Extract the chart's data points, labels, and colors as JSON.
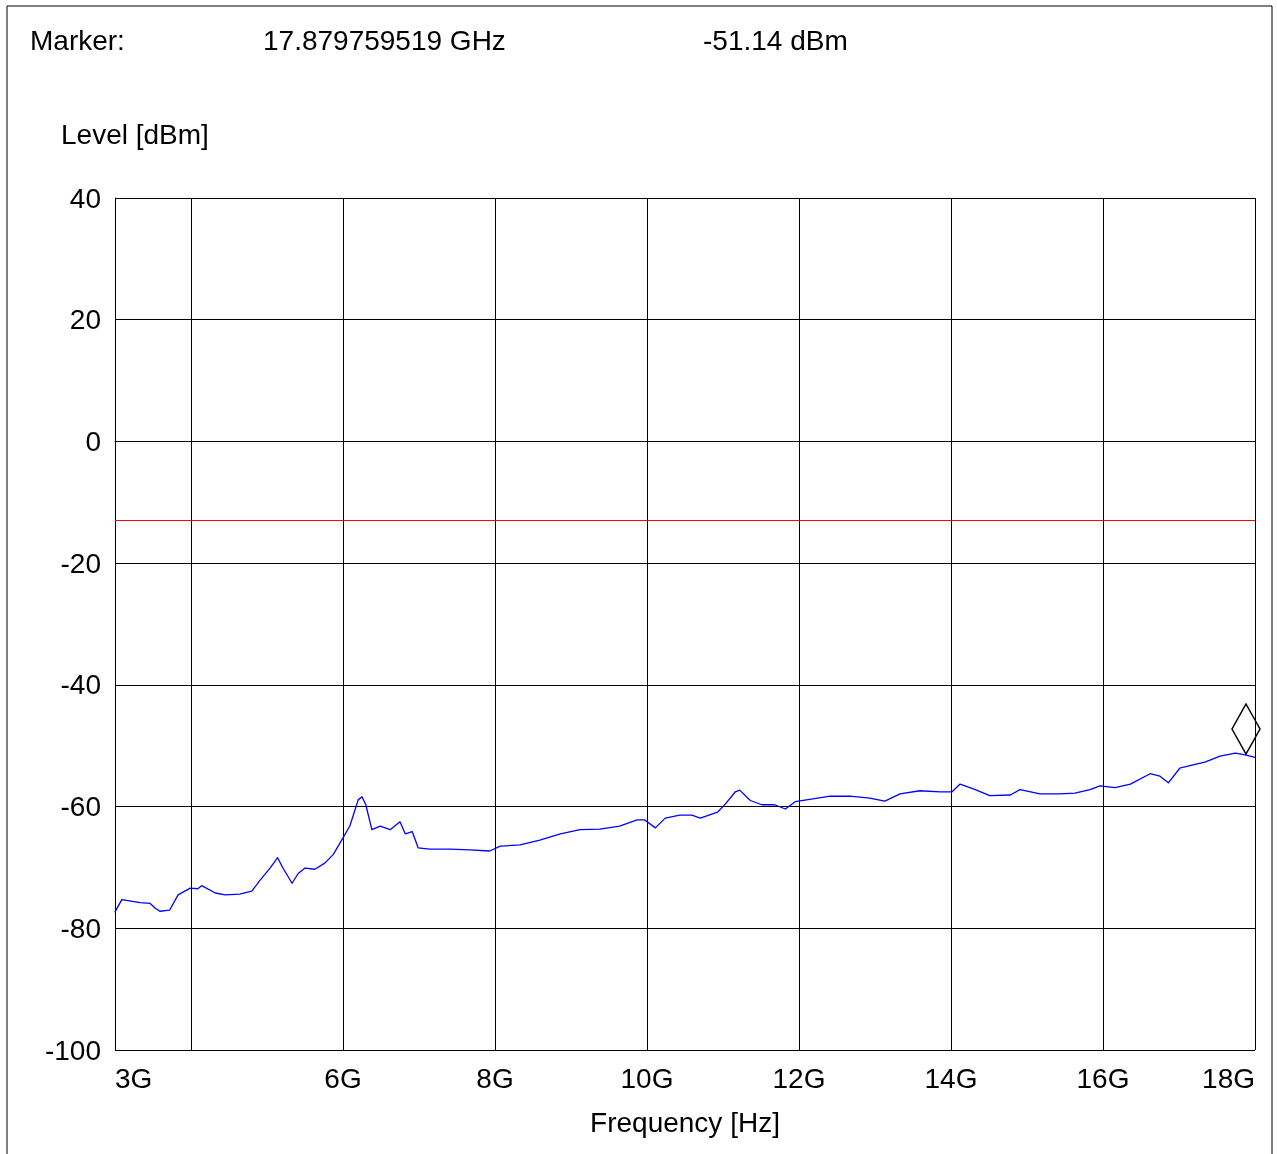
{
  "chart_data": {
    "type": "line",
    "xlabel": "Frequency [Hz]",
    "ylabel": "Level [dBm]",
    "annotations": [
      "Marker:",
      "17.879759519 GHz",
      "-51.14 dBm"
    ],
    "xlim": [
      3,
      18
    ],
    "xticks": [
      {
        "value": 3,
        "label": "3G"
      },
      {
        "value": 4,
        "label": null
      },
      {
        "value": 6,
        "label": "6G"
      },
      {
        "value": 8,
        "label": "8G"
      },
      {
        "value": 10,
        "label": "10G"
      },
      {
        "value": 12,
        "label": "12G"
      },
      {
        "value": 14,
        "label": "14G"
      },
      {
        "value": 16,
        "label": "16G"
      },
      {
        "value": 18,
        "label": "18G"
      }
    ],
    "ylim": [
      -100,
      40
    ],
    "yticks": [
      -100,
      -80,
      -60,
      -40,
      -20,
      0,
      20,
      40
    ],
    "grid": true,
    "marker": "none",
    "line_style": "solid",
    "ref_lines": [
      {
        "axis": "y",
        "value": -13,
        "color": "#ff0000"
      }
    ],
    "series": [
      {
        "color": "#0000ff",
        "x": [
          3.0,
          3.09,
          3.33,
          3.46,
          3.53,
          3.59,
          3.72,
          3.83,
          3.99,
          4.09,
          4.14,
          4.32,
          4.45,
          4.64,
          4.8,
          4.91,
          5.04,
          5.14,
          5.21,
          5.33,
          5.41,
          5.5,
          5.63,
          5.76,
          5.87,
          5.96,
          6.09,
          6.2,
          6.25,
          6.3,
          6.38,
          6.49,
          6.62,
          6.75,
          6.82,
          6.91,
          6.99,
          7.14,
          7.41,
          7.67,
          7.93,
          8.07,
          8.33,
          8.59,
          8.86,
          9.12,
          9.38,
          9.64,
          9.87,
          9.97,
          10.11,
          10.24,
          10.43,
          10.59,
          10.7,
          10.93,
          11.03,
          11.16,
          11.22,
          11.36,
          11.51,
          11.68,
          11.82,
          11.95,
          12.14,
          12.41,
          12.67,
          12.93,
          13.13,
          13.33,
          13.59,
          13.86,
          14.01,
          14.12,
          14.32,
          14.51,
          14.78,
          14.91,
          15.17,
          15.43,
          15.63,
          15.83,
          15.96,
          16.16,
          16.36,
          16.62,
          16.75,
          16.86,
          17.01,
          17.17,
          17.34,
          17.54,
          17.74,
          17.87,
          18.0
        ],
        "values": [
          -77.3,
          -75.3,
          -75.8,
          -75.9,
          -76.7,
          -77.2,
          -77.0,
          -74.5,
          -73.4,
          -73.5,
          -73.0,
          -74.2,
          -74.5,
          -74.4,
          -73.9,
          -72.1,
          -70.1,
          -68.4,
          -70.1,
          -72.6,
          -71.0,
          -70.1,
          -70.3,
          -69.3,
          -67.9,
          -66.0,
          -63.2,
          -58.9,
          -58.4,
          -59.7,
          -63.8,
          -63.2,
          -63.8,
          -62.5,
          -64.5,
          -64.1,
          -66.8,
          -67.0,
          -67.0,
          -67.1,
          -67.3,
          -66.5,
          -66.3,
          -65.5,
          -64.5,
          -63.8,
          -63.7,
          -63.2,
          -62.2,
          -62.2,
          -63.5,
          -61.9,
          -61.4,
          -61.4,
          -61.9,
          -60.9,
          -59.6,
          -57.6,
          -57.3,
          -59.0,
          -59.7,
          -59.7,
          -60.4,
          -59.2,
          -58.8,
          -58.3,
          -58.3,
          -58.6,
          -59.1,
          -57.9,
          -57.4,
          -57.6,
          -57.6,
          -56.3,
          -57.2,
          -58.2,
          -58.1,
          -57.2,
          -57.9,
          -57.9,
          -57.8,
          -57.2,
          -56.6,
          -56.9,
          -56.3,
          -54.6,
          -55.0,
          -56.1,
          -53.7,
          -53.2,
          -52.7,
          -51.7,
          -51.2,
          -51.5,
          -51.9
        ]
      }
    ]
  }
}
